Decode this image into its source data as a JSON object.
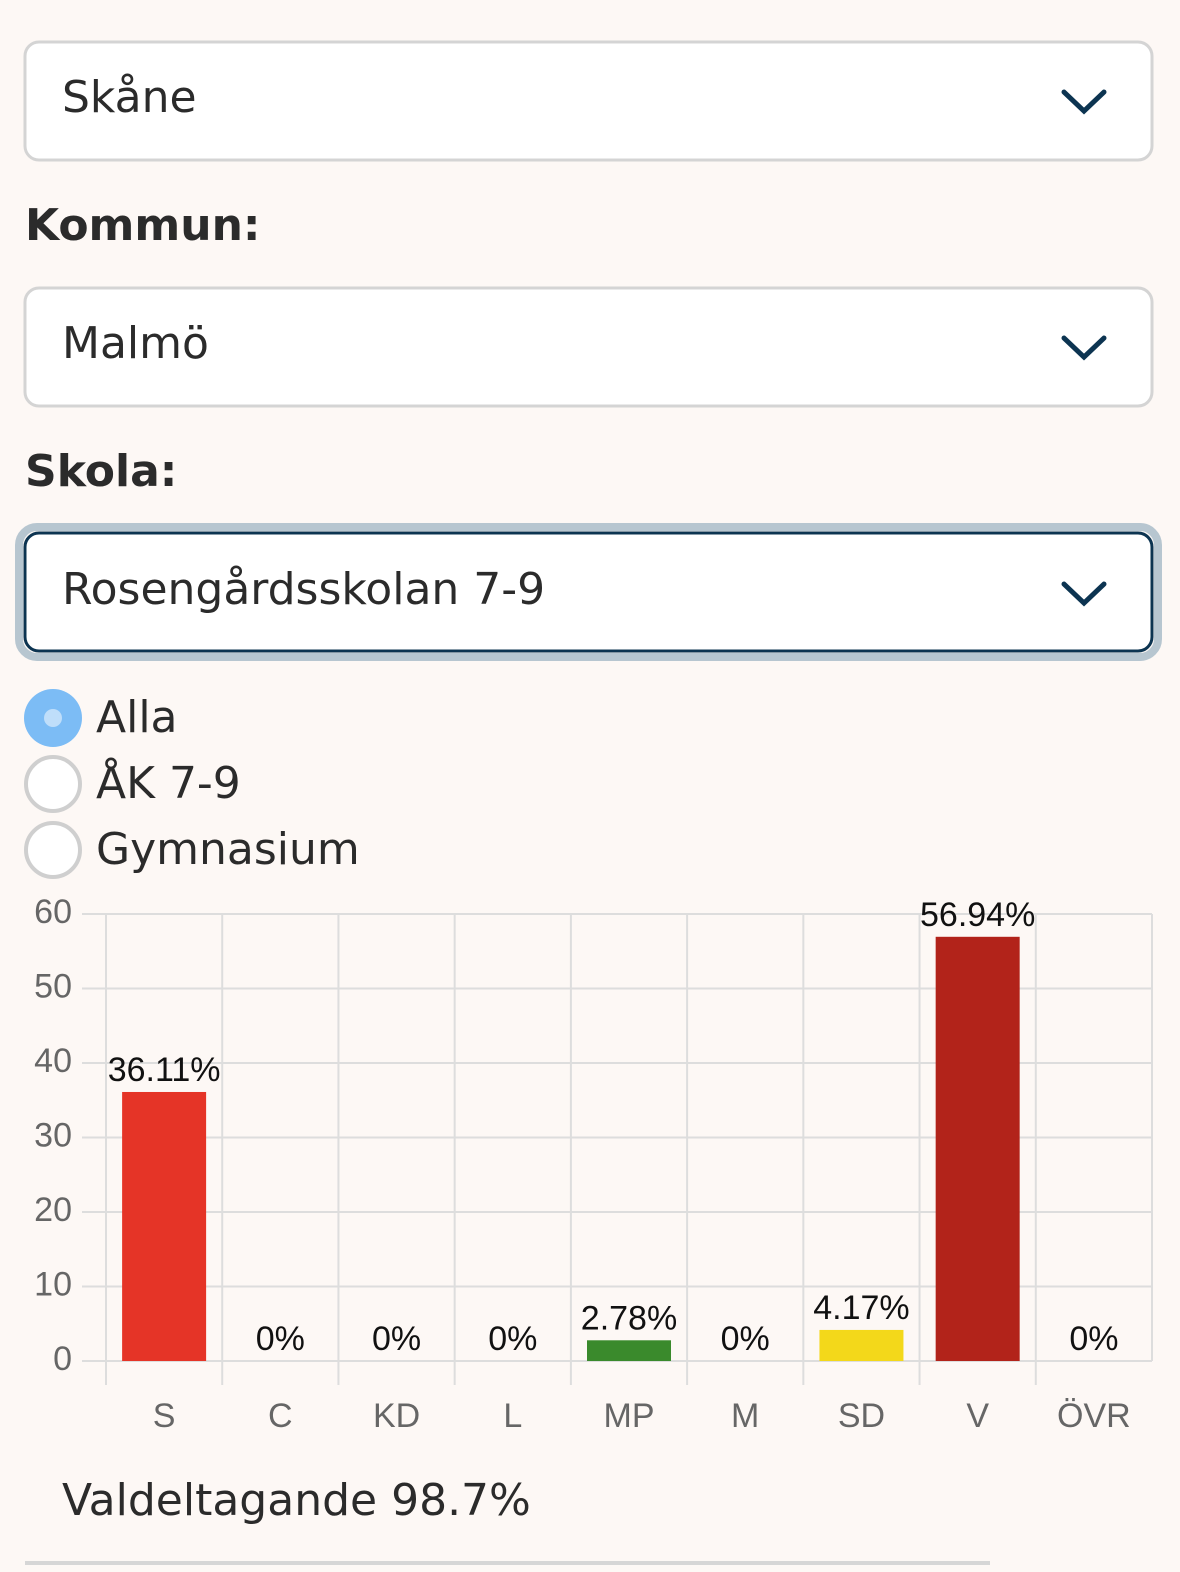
{
  "form": {
    "region": "Skåne",
    "kommun_label": "Kommun:",
    "kommun": "Malmö",
    "skola_label": "Skola:",
    "skola": "Rosengårdsskolan 7-9",
    "options": [
      {
        "label": "Alla",
        "selected": true
      },
      {
        "label": "ÅK 7-9",
        "selected": false
      },
      {
        "label": "Gymnasium",
        "selected": false
      }
    ]
  },
  "chart_data": {
    "type": "bar",
    "categories": [
      "S",
      "C",
      "KD",
      "L",
      "MP",
      "M",
      "SD",
      "V",
      "ÖVR"
    ],
    "values": [
      36.11,
      0,
      0,
      0,
      2.78,
      0,
      4.17,
      56.94,
      0
    ],
    "value_labels": [
      "36.11%",
      "0%",
      "0%",
      "0%",
      "2.78%",
      "0%",
      "4.17%",
      "56.94%",
      "0%"
    ],
    "colors": [
      "#e53427",
      null,
      null,
      null,
      "#3a8a2c",
      null,
      "#f3d81a",
      "#b2231a",
      null
    ],
    "ylim": [
      0,
      60
    ],
    "yticks": [
      0,
      10,
      20,
      30,
      40,
      50,
      60
    ],
    "grid": true
  },
  "footer": "Valdeltagande 98.7%"
}
